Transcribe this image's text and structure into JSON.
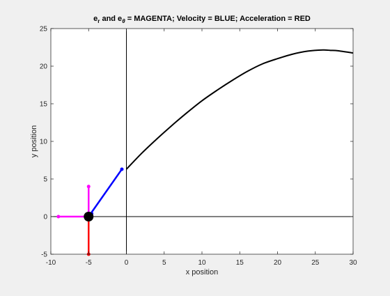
{
  "chart_data": {
    "type": "line",
    "title": {
      "er_base": "e",
      "er_sub": "r",
      "and_text": " and e",
      "etheta_sub": "θ",
      "rest": " = MAGENTA;    Velocity = BLUE;    Acceleration = RED"
    },
    "xlabel": "x position",
    "ylabel": "y position",
    "xlim": [
      -10,
      30
    ],
    "ylim": [
      -5,
      25
    ],
    "xticks": [
      -10,
      -5,
      0,
      5,
      10,
      15,
      20,
      25,
      30
    ],
    "yticks": [
      -5,
      0,
      5,
      10,
      15,
      20,
      25
    ],
    "grid": false,
    "colors": {
      "trajectory": "#000000",
      "e_vectors": "#ff00ff",
      "velocity": "#0000ff",
      "acceleration": "#ff0000",
      "body": "#000000",
      "reference_axes": "#000000",
      "axes_background": "#ffffff",
      "figure_background": "#f0f0f0"
    },
    "reference_lines": {
      "horizontal_y": 0,
      "vertical_x": 0
    },
    "series": [
      {
        "name": "trajectory",
        "x": [
          0,
          2,
          4,
          6,
          8,
          10,
          12,
          14,
          16,
          18,
          20,
          22,
          24,
          26,
          27,
          28,
          30
        ],
        "y": [
          6.3,
          8.4,
          10.3,
          12.1,
          13.8,
          15.4,
          16.8,
          18.1,
          19.3,
          20.3,
          21.0,
          21.6,
          22.0,
          22.15,
          22.1,
          22.05,
          21.75
        ]
      }
    ],
    "body": {
      "x": -5,
      "y": 0
    },
    "vectors": [
      {
        "name": "e_r",
        "color_key": "e_vectors",
        "from": [
          -5,
          0
        ],
        "to": [
          -9,
          0
        ]
      },
      {
        "name": "e_theta",
        "color_key": "e_vectors",
        "from": [
          -5,
          0
        ],
        "to": [
          -5,
          4
        ]
      },
      {
        "name": "velocity_main",
        "color_key": "velocity",
        "from": [
          -5,
          0
        ],
        "to": [
          -0.6,
          6.3
        ]
      },
      {
        "name": "velocity_tip",
        "color_key": "velocity",
        "from": [
          -4.8,
          0.2
        ],
        "to": [
          -4.6,
          0.4
        ]
      },
      {
        "name": "acceleration",
        "color_key": "acceleration",
        "from": [
          -5,
          0
        ],
        "to": [
          -5,
          -5
        ]
      }
    ]
  }
}
